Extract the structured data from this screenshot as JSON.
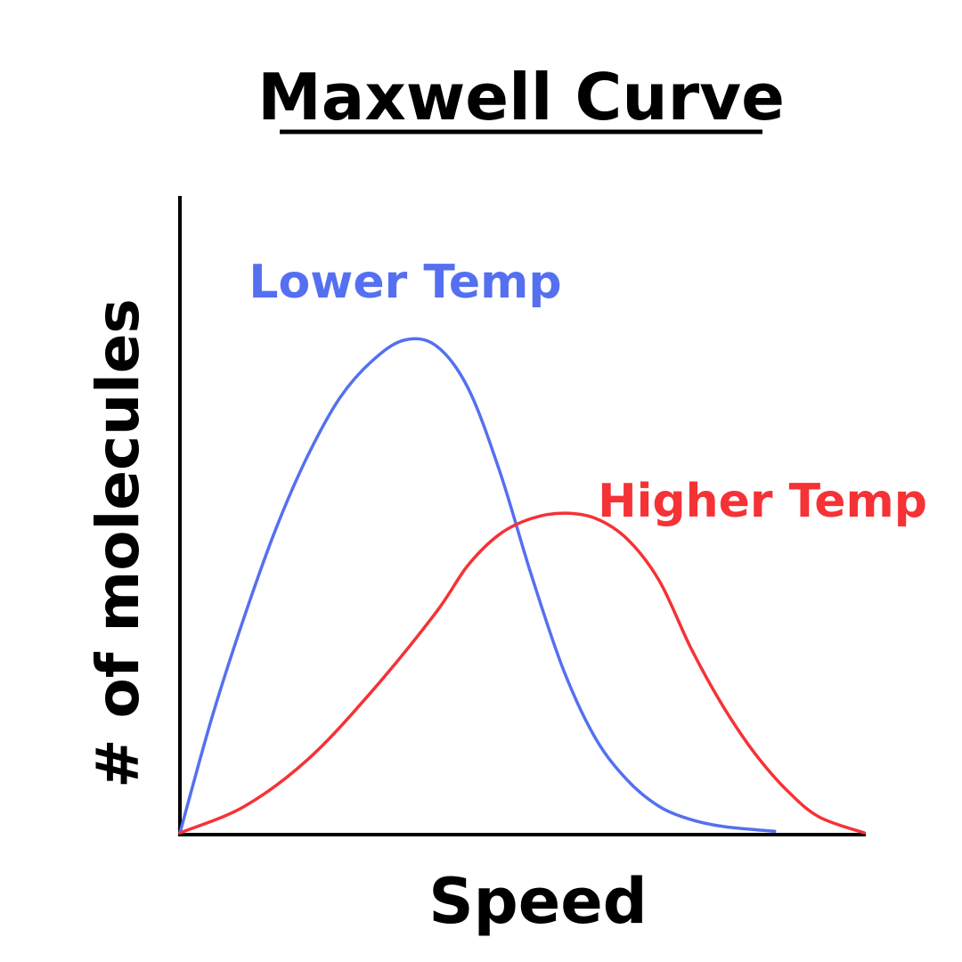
{
  "chart_data": {
    "type": "line",
    "title": "Maxwell Curve",
    "xlabel": "Speed",
    "ylabel": "# of molecules",
    "xlim": [
      0,
      100
    ],
    "ylim": [
      0,
      100
    ],
    "grid": false,
    "legend": "none",
    "series": [
      {
        "name": "Lower Temp",
        "color": "#5470f0",
        "x": [
          0,
          5,
          10,
          15,
          20,
          25,
          30,
          35,
          40,
          45,
          50,
          55,
          60,
          65,
          70,
          75,
          80,
          85,
          90,
          93
        ],
        "y": [
          0,
          22,
          41,
          58,
          72,
          83,
          90,
          94,
          93,
          85,
          69,
          49,
          31,
          18,
          10,
          5,
          2.5,
          1.2,
          0.6,
          0.3
        ]
      },
      {
        "name": "Higher Temp",
        "color": "#f53236",
        "x": [
          0,
          10,
          20,
          30,
          40,
          45,
          50,
          55,
          60,
          65,
          70,
          75,
          80,
          85,
          90,
          95,
          100,
          107
        ],
        "y": [
          0,
          5,
          14,
          27,
          42,
          51,
          57,
          60,
          61,
          60,
          56,
          48,
          35,
          24,
          15,
          8,
          3,
          0
        ]
      }
    ]
  }
}
